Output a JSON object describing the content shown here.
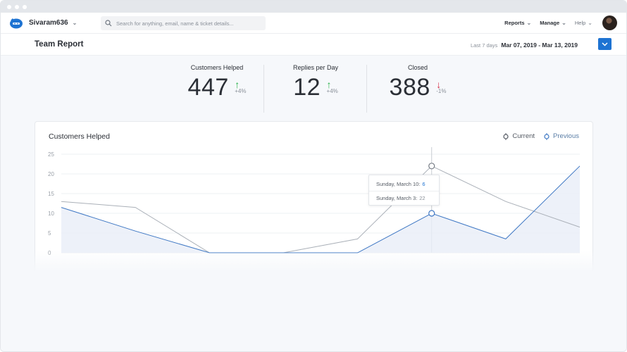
{
  "app": {
    "account_name": "Sivaram636",
    "search_placeholder": "Search for anything, email, name & ticket details...",
    "nav": [
      "Reports",
      "Manage",
      "Help"
    ],
    "accent_color": "#1e73d2"
  },
  "page": {
    "title": "Team Report",
    "range_label": "Last 7 days",
    "range_value": "Mar 07, 2019 - Mar 13, 2019"
  },
  "stats": [
    {
      "name": "Customers Helped",
      "value": "447",
      "delta": "+4%",
      "trend": "up"
    },
    {
      "name": "Replies per Day",
      "value": "12",
      "delta": "+4%",
      "trend": "up"
    },
    {
      "name": "Closed",
      "value": "388",
      "delta": "-1%",
      "trend": "down"
    }
  ],
  "chart": {
    "title": "Customers Helped",
    "legend_current": "Current",
    "legend_previous": "Previous",
    "tooltip": {
      "row1_label": "Sunday, March 10:",
      "row1_value": "6",
      "row2_label": "Sunday, March 3:",
      "row2_value": "22"
    }
  },
  "chart_data": {
    "type": "line",
    "title": "Customers Helped",
    "ylim": [
      0,
      25
    ],
    "yticks": [
      0,
      5,
      10,
      15,
      20,
      25
    ],
    "grid": true,
    "legend": "top-right",
    "series": [
      {
        "name": "Current",
        "color": "#aab0b8",
        "values": [
          13,
          11.5,
          0,
          0,
          3.5,
          22,
          13,
          6.5
        ]
      },
      {
        "name": "Previous",
        "color": "#3f78c4",
        "values": [
          11.5,
          5.5,
          0,
          0,
          0,
          10,
          3.5,
          22
        ]
      }
    ]
  }
}
